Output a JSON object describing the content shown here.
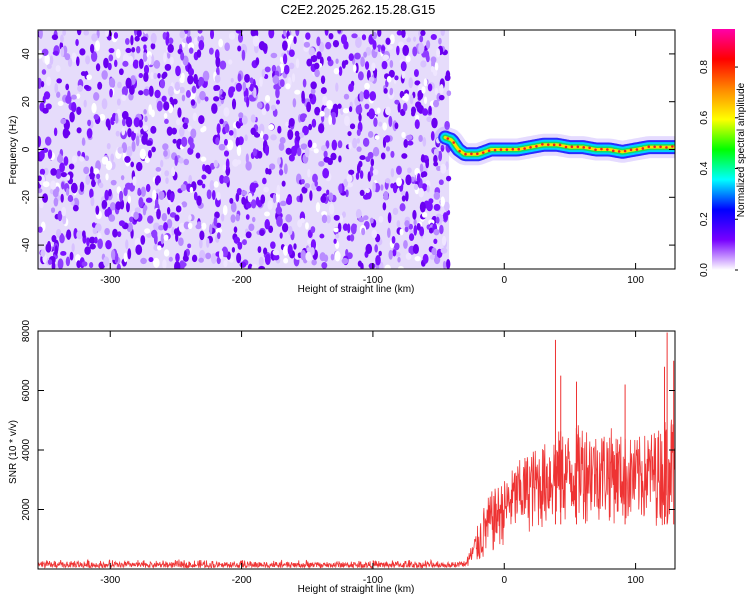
{
  "title": "C2E2.2025.262.15.28.G15",
  "chart_data": [
    {
      "type": "heatmap",
      "panel": "spectrogram",
      "xlabel": "Height of straight line (km)",
      "ylabel": "Frequency (Hz)",
      "xlim": [
        -355,
        130
      ],
      "ylim": [
        -50,
        50
      ],
      "xticks": [
        -300,
        -200,
        -100,
        0,
        100
      ],
      "xtick_labels": [
        "-300",
        "-200",
        "-100",
        "0",
        "100"
      ],
      "yticks": [
        -40,
        -20,
        0,
        20,
        40
      ],
      "ytick_labels": [
        "-40",
        "-20",
        "0",
        "20",
        "40"
      ],
      "noise_region_x": [
        -355,
        -42
      ],
      "signal_track": {
        "x": [
          -45,
          -40,
          -35,
          -30,
          -25,
          -20,
          -10,
          0,
          10,
          20,
          30,
          40,
          50,
          60,
          70,
          80,
          90,
          100,
          110,
          120,
          130
        ],
        "freq": [
          5,
          4,
          0,
          -2,
          -2,
          -2,
          0,
          0,
          0,
          1,
          2,
          2,
          1,
          1,
          0,
          0,
          -1,
          0,
          1,
          1,
          1
        ]
      },
      "colorbar": {
        "label": "Normalized spectral amplitude",
        "range": [
          0,
          0.95
        ],
        "ticks": [
          0.0,
          0.2,
          0.4,
          0.6,
          0.8
        ],
        "tick_labels": [
          "0.0",
          "0.2",
          "0.4",
          "0.6",
          "0.8"
        ],
        "colors": [
          "#ffffff",
          "#7700ff",
          "#0000ff",
          "#00ffff",
          "#00ff00",
          "#ffff00",
          "#ff8800",
          "#ff0000",
          "#ff00aa"
        ]
      }
    },
    {
      "type": "line",
      "panel": "snr",
      "xlabel": "Height of straight line (km)",
      "ylabel": "SNR (10 * v/v)",
      "xlim": [
        -355,
        130
      ],
      "ylim": [
        0,
        8000
      ],
      "xticks": [
        -300,
        -200,
        -100,
        0,
        100
      ],
      "xtick_labels": [
        "-300",
        "-200",
        "-100",
        "0",
        "100"
      ],
      "yticks": [
        2000,
        4000,
        6000,
        8000
      ],
      "ytick_labels": [
        "2000",
        "4000",
        "6000",
        "8000"
      ],
      "line_color": "#ee3333",
      "series": [
        {
          "name": "SNR",
          "x": [
            -355,
            -300,
            -250,
            -200,
            -150,
            -100,
            -50,
            -30,
            -25,
            -20,
            -15,
            -10,
            -5,
            0,
            5,
            10,
            20,
            30,
            40,
            50,
            60,
            70,
            80,
            90,
            100,
            110,
            120,
            125,
            130
          ],
          "low": [
            0,
            0,
            0,
            0,
            0,
            0,
            0,
            0,
            0,
            100,
            200,
            400,
            600,
            800,
            1000,
            1100,
            1200,
            1300,
            1400,
            1400,
            1500,
            1600,
            1500,
            1500,
            1400,
            1500,
            1400,
            1500,
            1500
          ],
          "high": [
            330,
            330,
            340,
            330,
            320,
            320,
            330,
            350,
            800,
            1500,
            2200,
            2600,
            2800,
            3000,
            3300,
            3600,
            4000,
            4200,
            4700,
            4600,
            5000,
            4600,
            4800,
            4500,
            4400,
            4600,
            4800,
            5500,
            5000
          ],
          "peaks": [
            {
              "x": 39,
              "y": 7700
            },
            {
              "x": 43,
              "y": 6500
            },
            {
              "x": 55,
              "y": 6300
            },
            {
              "x": 92,
              "y": 6200
            },
            {
              "x": 122,
              "y": 6800
            },
            {
              "x": 124,
              "y": 7950
            },
            {
              "x": 129,
              "y": 7000
            }
          ]
        }
      ]
    }
  ]
}
